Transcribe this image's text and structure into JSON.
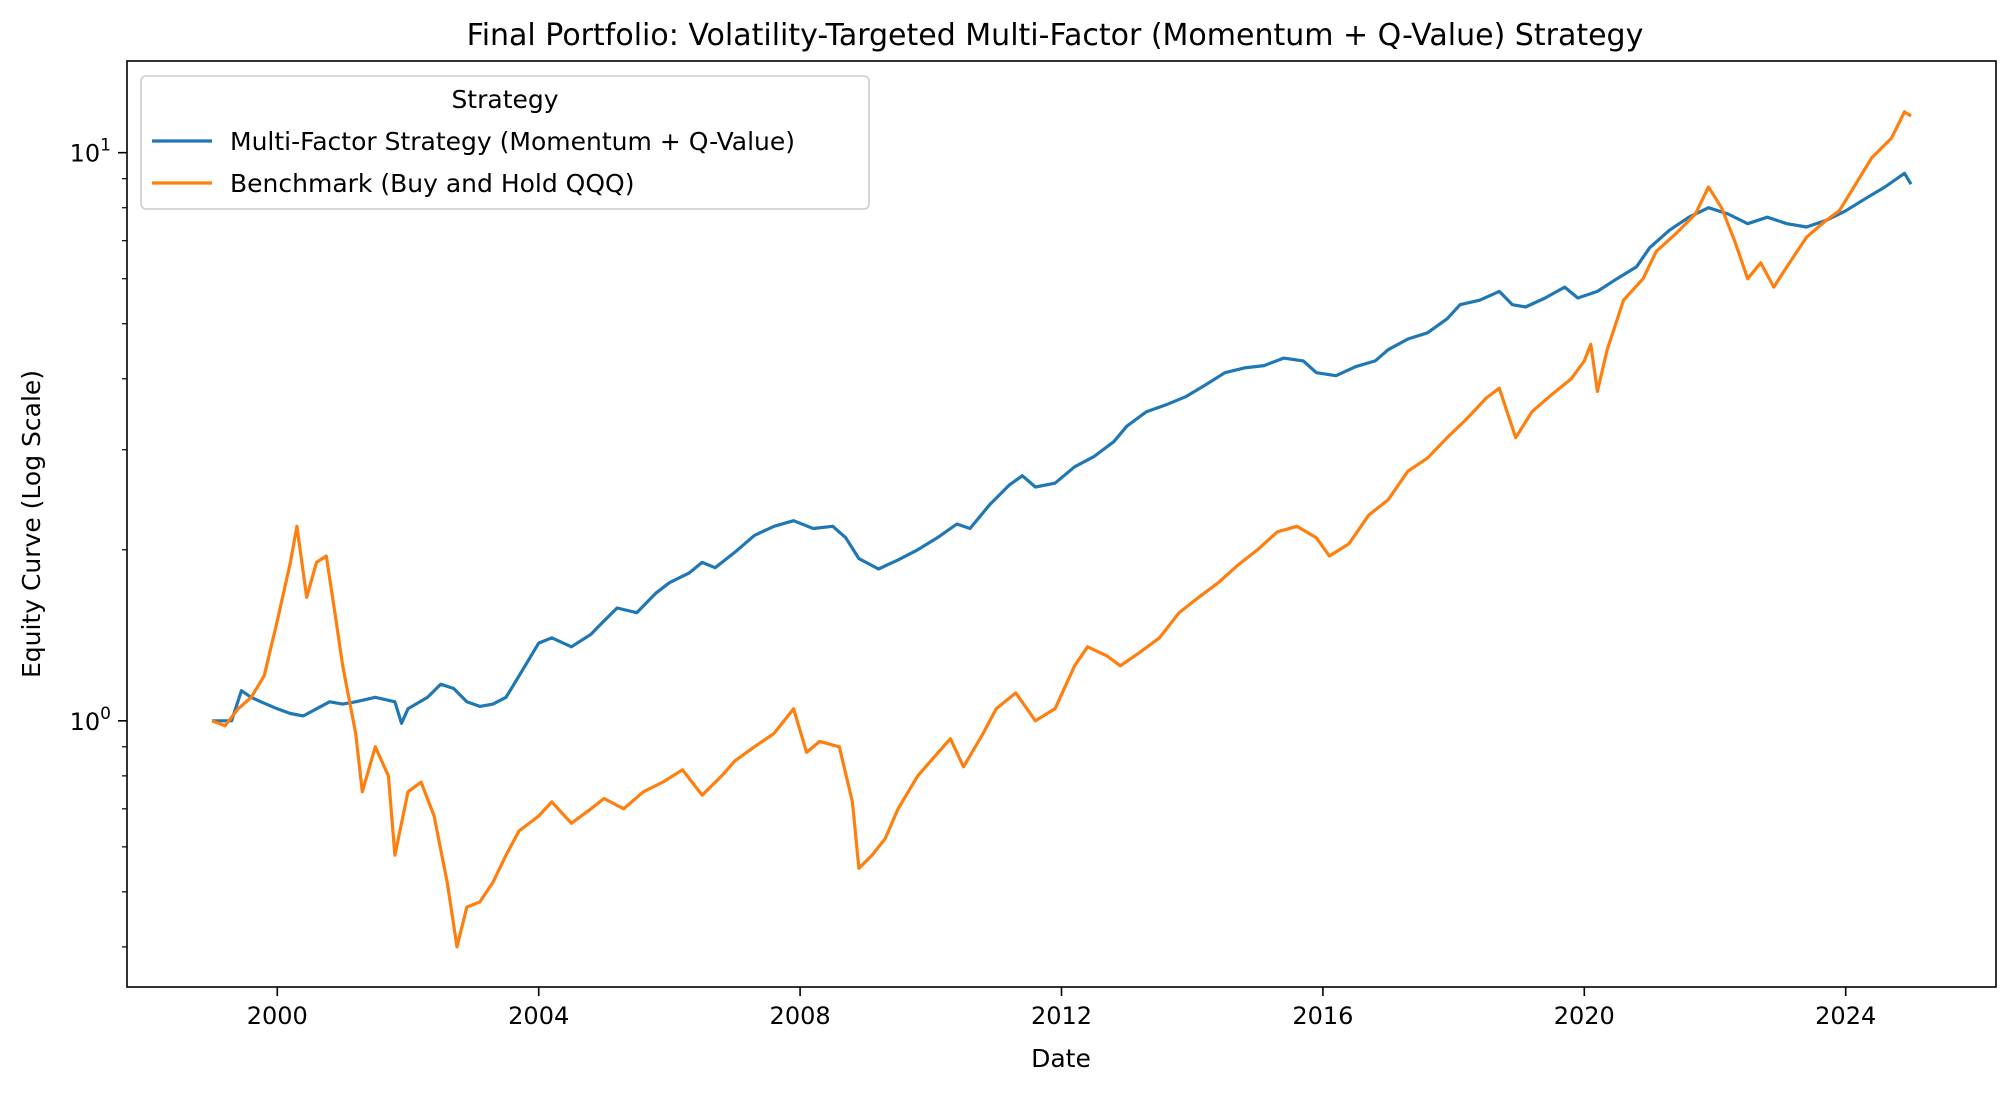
{
  "chart_data": {
    "type": "line",
    "title": "Final Portfolio: Volatility-Targeted Multi-Factor (Momentum + Q-Value) Strategy",
    "xlabel": "Date",
    "ylabel": "Equity Curve (Log Scale)",
    "yscale": "log",
    "xlim": [
      1997.7,
      2026.3
    ],
    "ylim": [
      0.34,
      14.5
    ],
    "grid": false,
    "legend": {
      "title": "Strategy",
      "placement": "top-left"
    },
    "x_ticks": [
      2000,
      2004,
      2008,
      2012,
      2016,
      2020,
      2024
    ],
    "x_tick_labels": [
      "2000",
      "2004",
      "2008",
      "2012",
      "2016",
      "2020",
      "2024"
    ],
    "y_ticks": [
      1,
      10
    ],
    "y_tick_labels": [
      {
        "base": "10",
        "exp": "0"
      },
      {
        "base": "10",
        "exp": "1"
      }
    ],
    "series": [
      {
        "name": "Multi-Factor Strategy (Momentum + Q-Value)",
        "color": "#1f77b4",
        "points": [
          [
            1999.0,
            1.0
          ],
          [
            1999.3,
            1.0
          ],
          [
            1999.45,
            1.13
          ],
          [
            1999.6,
            1.1
          ],
          [
            1999.75,
            1.08
          ],
          [
            2000.0,
            1.05
          ],
          [
            2000.2,
            1.03
          ],
          [
            2000.4,
            1.02
          ],
          [
            2000.6,
            1.05
          ],
          [
            2000.8,
            1.08
          ],
          [
            2001.0,
            1.07
          ],
          [
            2001.2,
            1.08
          ],
          [
            2001.5,
            1.1
          ],
          [
            2001.8,
            1.08
          ],
          [
            2001.9,
            0.99
          ],
          [
            2002.0,
            1.05
          ],
          [
            2002.3,
            1.1
          ],
          [
            2002.5,
            1.16
          ],
          [
            2002.7,
            1.14
          ],
          [
            2002.9,
            1.08
          ],
          [
            2003.1,
            1.06
          ],
          [
            2003.3,
            1.07
          ],
          [
            2003.5,
            1.1
          ],
          [
            2003.7,
            1.2
          ],
          [
            2004.0,
            1.37
          ],
          [
            2004.2,
            1.4
          ],
          [
            2004.5,
            1.35
          ],
          [
            2004.8,
            1.42
          ],
          [
            2005.0,
            1.5
          ],
          [
            2005.2,
            1.58
          ],
          [
            2005.5,
            1.55
          ],
          [
            2005.8,
            1.68
          ],
          [
            2006.0,
            1.75
          ],
          [
            2006.3,
            1.82
          ],
          [
            2006.5,
            1.9
          ],
          [
            2006.7,
            1.86
          ],
          [
            2007.0,
            1.98
          ],
          [
            2007.3,
            2.12
          ],
          [
            2007.6,
            2.2
          ],
          [
            2007.9,
            2.25
          ],
          [
            2008.2,
            2.18
          ],
          [
            2008.5,
            2.2
          ],
          [
            2008.7,
            2.1
          ],
          [
            2008.9,
            1.93
          ],
          [
            2009.2,
            1.85
          ],
          [
            2009.5,
            1.92
          ],
          [
            2009.8,
            2.0
          ],
          [
            2010.1,
            2.1
          ],
          [
            2010.4,
            2.22
          ],
          [
            2010.6,
            2.18
          ],
          [
            2010.9,
            2.4
          ],
          [
            2011.2,
            2.6
          ],
          [
            2011.4,
            2.7
          ],
          [
            2011.6,
            2.58
          ],
          [
            2011.9,
            2.62
          ],
          [
            2012.2,
            2.8
          ],
          [
            2012.5,
            2.92
          ],
          [
            2012.8,
            3.1
          ],
          [
            2013.0,
            3.3
          ],
          [
            2013.3,
            3.5
          ],
          [
            2013.6,
            3.6
          ],
          [
            2013.9,
            3.72
          ],
          [
            2014.2,
            3.9
          ],
          [
            2014.5,
            4.1
          ],
          [
            2014.8,
            4.18
          ],
          [
            2015.1,
            4.22
          ],
          [
            2015.4,
            4.35
          ],
          [
            2015.7,
            4.3
          ],
          [
            2015.9,
            4.1
          ],
          [
            2016.2,
            4.05
          ],
          [
            2016.5,
            4.2
          ],
          [
            2016.8,
            4.3
          ],
          [
            2017.0,
            4.5
          ],
          [
            2017.3,
            4.7
          ],
          [
            2017.6,
            4.82
          ],
          [
            2017.9,
            5.1
          ],
          [
            2018.1,
            5.4
          ],
          [
            2018.4,
            5.5
          ],
          [
            2018.7,
            5.7
          ],
          [
            2018.9,
            5.4
          ],
          [
            2019.1,
            5.35
          ],
          [
            2019.4,
            5.55
          ],
          [
            2019.7,
            5.8
          ],
          [
            2019.9,
            5.55
          ],
          [
            2020.2,
            5.7
          ],
          [
            2020.5,
            6.0
          ],
          [
            2020.8,
            6.3
          ],
          [
            2021.0,
            6.8
          ],
          [
            2021.3,
            7.3
          ],
          [
            2021.6,
            7.7
          ],
          [
            2021.9,
            8.0
          ],
          [
            2022.2,
            7.8
          ],
          [
            2022.5,
            7.5
          ],
          [
            2022.8,
            7.7
          ],
          [
            2023.1,
            7.5
          ],
          [
            2023.4,
            7.4
          ],
          [
            2023.7,
            7.6
          ],
          [
            2024.0,
            7.9
          ],
          [
            2024.3,
            8.3
          ],
          [
            2024.6,
            8.7
          ],
          [
            2024.9,
            9.2
          ],
          [
            2025.0,
            8.8
          ]
        ]
      },
      {
        "name": "Benchmark (Buy and Hold QQQ)",
        "color": "#ff7f0e",
        "points": [
          [
            1999.0,
            1.0
          ],
          [
            1999.2,
            0.98
          ],
          [
            1999.4,
            1.05
          ],
          [
            1999.6,
            1.1
          ],
          [
            1999.8,
            1.2
          ],
          [
            2000.0,
            1.5
          ],
          [
            2000.2,
            1.9
          ],
          [
            2000.3,
            2.2
          ],
          [
            2000.45,
            1.65
          ],
          [
            2000.6,
            1.9
          ],
          [
            2000.75,
            1.95
          ],
          [
            2000.9,
            1.5
          ],
          [
            2001.0,
            1.25
          ],
          [
            2001.2,
            0.95
          ],
          [
            2001.3,
            0.75
          ],
          [
            2001.5,
            0.9
          ],
          [
            2001.7,
            0.8
          ],
          [
            2001.8,
            0.58
          ],
          [
            2002.0,
            0.75
          ],
          [
            2002.2,
            0.78
          ],
          [
            2002.4,
            0.68
          ],
          [
            2002.6,
            0.52
          ],
          [
            2002.75,
            0.4
          ],
          [
            2002.9,
            0.47
          ],
          [
            2003.1,
            0.48
          ],
          [
            2003.3,
            0.52
          ],
          [
            2003.5,
            0.58
          ],
          [
            2003.7,
            0.64
          ],
          [
            2004.0,
            0.68
          ],
          [
            2004.2,
            0.72
          ],
          [
            2004.5,
            0.66
          ],
          [
            2004.8,
            0.7
          ],
          [
            2005.0,
            0.73
          ],
          [
            2005.3,
            0.7
          ],
          [
            2005.6,
            0.75
          ],
          [
            2005.9,
            0.78
          ],
          [
            2006.2,
            0.82
          ],
          [
            2006.5,
            0.74
          ],
          [
            2006.8,
            0.8
          ],
          [
            2007.0,
            0.85
          ],
          [
            2007.3,
            0.9
          ],
          [
            2007.6,
            0.95
          ],
          [
            2007.9,
            1.05
          ],
          [
            2008.1,
            0.88
          ],
          [
            2008.3,
            0.92
          ],
          [
            2008.6,
            0.9
          ],
          [
            2008.8,
            0.72
          ],
          [
            2008.9,
            0.55
          ],
          [
            2009.1,
            0.58
          ],
          [
            2009.3,
            0.62
          ],
          [
            2009.5,
            0.7
          ],
          [
            2009.8,
            0.8
          ],
          [
            2010.0,
            0.85
          ],
          [
            2010.3,
            0.93
          ],
          [
            2010.5,
            0.83
          ],
          [
            2010.8,
            0.95
          ],
          [
            2011.0,
            1.05
          ],
          [
            2011.3,
            1.12
          ],
          [
            2011.6,
            1.0
          ],
          [
            2011.9,
            1.05
          ],
          [
            2012.2,
            1.25
          ],
          [
            2012.4,
            1.35
          ],
          [
            2012.7,
            1.3
          ],
          [
            2012.9,
            1.25
          ],
          [
            2013.2,
            1.32
          ],
          [
            2013.5,
            1.4
          ],
          [
            2013.8,
            1.55
          ],
          [
            2014.1,
            1.65
          ],
          [
            2014.4,
            1.75
          ],
          [
            2014.7,
            1.88
          ],
          [
            2015.0,
            2.0
          ],
          [
            2015.3,
            2.15
          ],
          [
            2015.6,
            2.2
          ],
          [
            2015.9,
            2.1
          ],
          [
            2016.1,
            1.95
          ],
          [
            2016.4,
            2.05
          ],
          [
            2016.7,
            2.3
          ],
          [
            2017.0,
            2.45
          ],
          [
            2017.3,
            2.75
          ],
          [
            2017.6,
            2.9
          ],
          [
            2017.9,
            3.15
          ],
          [
            2018.2,
            3.4
          ],
          [
            2018.5,
            3.7
          ],
          [
            2018.7,
            3.85
          ],
          [
            2018.95,
            3.15
          ],
          [
            2019.2,
            3.5
          ],
          [
            2019.5,
            3.75
          ],
          [
            2019.8,
            4.0
          ],
          [
            2020.0,
            4.3
          ],
          [
            2020.1,
            4.6
          ],
          [
            2020.2,
            3.8
          ],
          [
            2020.35,
            4.5
          ],
          [
            2020.6,
            5.5
          ],
          [
            2020.9,
            6.0
          ],
          [
            2021.1,
            6.7
          ],
          [
            2021.4,
            7.2
          ],
          [
            2021.7,
            7.8
          ],
          [
            2021.9,
            8.7
          ],
          [
            2022.1,
            8.0
          ],
          [
            2022.3,
            7.0
          ],
          [
            2022.5,
            6.0
          ],
          [
            2022.7,
            6.4
          ],
          [
            2022.9,
            5.8
          ],
          [
            2023.1,
            6.3
          ],
          [
            2023.4,
            7.1
          ],
          [
            2023.7,
            7.6
          ],
          [
            2023.9,
            7.9
          ],
          [
            2024.1,
            8.6
          ],
          [
            2024.4,
            9.8
          ],
          [
            2024.7,
            10.6
          ],
          [
            2024.9,
            11.8
          ],
          [
            2025.0,
            11.6
          ]
        ]
      }
    ]
  }
}
